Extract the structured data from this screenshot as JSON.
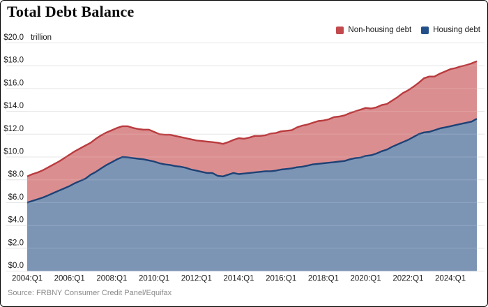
{
  "header": {
    "title": "Total Debt Balance"
  },
  "legend": [
    {
      "label": "Non-housing debt",
      "color": "#c2494c"
    },
    {
      "label": "Housing debt",
      "color": "#24508a"
    }
  ],
  "source": "Source: FRBNY Consumer Credit Panel/Equifax",
  "chart_data": {
    "type": "area",
    "stacked": true,
    "title": "Total Debt Balance",
    "unit_label": "trillion",
    "xlabel": "",
    "ylabel": "$ trillion",
    "ylim": [
      0,
      20
    ],
    "grid": "horizontal",
    "legend_position": "top-right",
    "x_start": "2004:Q1",
    "x_end": "2025:Q2",
    "x_frequency": "quarterly",
    "x_tick_labels": [
      "2004:Q1",
      "2006:Q1",
      "2008:Q1",
      "2010:Q1",
      "2012:Q1",
      "2014:Q1",
      "2016:Q1",
      "2018:Q1",
      "2020:Q1",
      "2022:Q1",
      "2024:Q1"
    ],
    "x_tick_indices": [
      0,
      8,
      16,
      24,
      32,
      40,
      48,
      56,
      64,
      72,
      80
    ],
    "y_tick_values": [
      0,
      2,
      4,
      6,
      8,
      10,
      12,
      14,
      16,
      18,
      20
    ],
    "y_tick_labels": [
      "$0.0",
      "$2.0",
      "$4.0",
      "$6.0",
      "$8.0",
      "$10.0",
      "$12.0",
      "$14.0",
      "$16.0",
      "$18.0",
      "$20.0"
    ],
    "series": [
      {
        "name": "Housing debt",
        "color_fill": "#7d95b5",
        "color_line": "#1d4276",
        "values": [
          6.0,
          6.15,
          6.3,
          6.45,
          6.65,
          6.85,
          7.05,
          7.25,
          7.45,
          7.7,
          7.9,
          8.1,
          8.45,
          8.7,
          9.0,
          9.3,
          9.55,
          9.8,
          10.0,
          9.97,
          9.9,
          9.85,
          9.8,
          9.7,
          9.6,
          9.45,
          9.35,
          9.3,
          9.2,
          9.15,
          9.05,
          8.9,
          8.8,
          8.7,
          8.6,
          8.6,
          8.35,
          8.3,
          8.45,
          8.6,
          8.5,
          8.55,
          8.6,
          8.65,
          8.7,
          8.75,
          8.75,
          8.8,
          8.9,
          8.95,
          9.0,
          9.1,
          9.15,
          9.25,
          9.35,
          9.4,
          9.45,
          9.5,
          9.55,
          9.6,
          9.65,
          9.8,
          9.9,
          9.95,
          10.1,
          10.15,
          10.3,
          10.5,
          10.65,
          10.9,
          11.1,
          11.3,
          11.5,
          11.75,
          12.0,
          12.15,
          12.2,
          12.35,
          12.5,
          12.6,
          12.7,
          12.8,
          12.9,
          13.0,
          13.1,
          13.35
        ]
      },
      {
        "name": "Non-housing debt",
        "color_fill": "#db8e90",
        "color_line": "#b93b3e",
        "values": [
          2.3,
          2.35,
          2.35,
          2.4,
          2.45,
          2.5,
          2.55,
          2.65,
          2.75,
          2.8,
          2.85,
          2.9,
          2.8,
          2.9,
          2.9,
          2.85,
          2.8,
          2.75,
          2.7,
          2.73,
          2.65,
          2.6,
          2.6,
          2.7,
          2.6,
          2.55,
          2.6,
          2.65,
          2.65,
          2.6,
          2.6,
          2.65,
          2.65,
          2.7,
          2.75,
          2.7,
          2.9,
          2.85,
          2.85,
          2.9,
          3.15,
          3.05,
          3.1,
          3.2,
          3.15,
          3.15,
          3.3,
          3.3,
          3.35,
          3.35,
          3.35,
          3.5,
          3.6,
          3.6,
          3.65,
          3.75,
          3.75,
          3.8,
          3.95,
          3.95,
          4.0,
          4.05,
          4.1,
          4.2,
          4.2,
          4.1,
          4.05,
          4.05,
          4.0,
          4.05,
          4.15,
          4.3,
          4.35,
          4.4,
          4.5,
          4.75,
          4.85,
          4.7,
          4.8,
          4.9,
          5.0,
          5.0,
          5.05,
          5.05,
          5.1,
          5.05
        ]
      }
    ]
  }
}
